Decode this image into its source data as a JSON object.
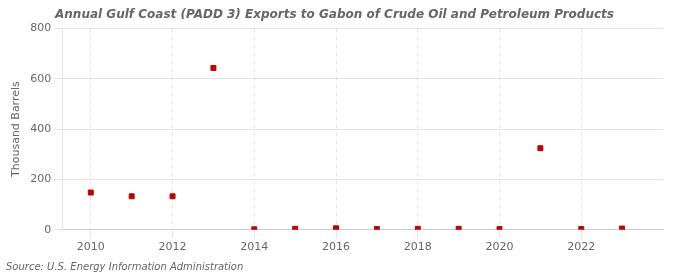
{
  "chart_data": {
    "type": "scatter",
    "title": "Annual Gulf Coast (PADD 3) Exports to Gabon of Crude Oil and Petroleum Products",
    "ylabel": "Thousand Barrels",
    "source": "Source: U.S. Energy Information Administration",
    "x": [
      2010,
      2011,
      2012,
      2013,
      2014,
      2015,
      2016,
      2017,
      2018,
      2019,
      2020,
      2021,
      2022,
      2023
    ],
    "values": [
      148,
      133,
      133,
      643,
      2,
      4,
      6,
      3,
      4,
      4,
      3,
      324,
      3,
      5
    ],
    "color": "#c00000",
    "marker": "square",
    "xlim": [
      2009.3,
      2024.0
    ],
    "xticks": [
      2010,
      2012,
      2014,
      2016,
      2018,
      2020,
      2022
    ],
    "ylim": [
      0,
      800
    ],
    "yticks": [
      0,
      200,
      400,
      600,
      800
    ],
    "grid": true
  }
}
